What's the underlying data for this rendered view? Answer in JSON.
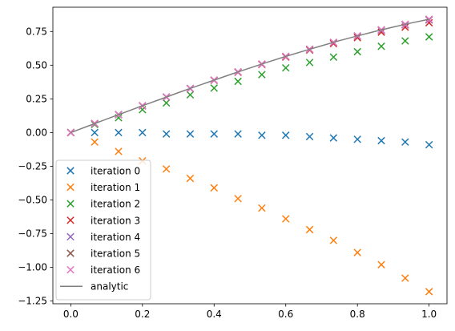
{
  "chart_data": {
    "type": "scatter",
    "title": "",
    "xlabel": "",
    "ylabel": "",
    "xlim": [
      -0.05,
      1.05
    ],
    "ylim": [
      -1.27,
      0.93
    ],
    "x_ticks": [
      0.0,
      0.2,
      0.4,
      0.6,
      0.8,
      1.0
    ],
    "x_tick_labels": [
      "0.0",
      "0.2",
      "0.4",
      "0.6",
      "0.8",
      "1.0"
    ],
    "y_ticks": [
      0.75,
      0.5,
      0.25,
      0.0,
      -0.25,
      -0.5,
      -0.75,
      -1.0,
      -1.25
    ],
    "y_tick_labels": [
      "0.75",
      "0.50",
      "0.25",
      "0.00",
      "−0.25",
      "−0.50",
      "−0.75",
      "−1.00",
      "−1.25"
    ],
    "grid": false,
    "legend_position": "lower-left",
    "x": [
      0.0,
      0.0667,
      0.1333,
      0.2,
      0.2667,
      0.3333,
      0.4,
      0.4667,
      0.5333,
      0.6,
      0.6667,
      0.7333,
      0.8,
      0.8667,
      0.9333,
      1.0
    ],
    "series": [
      {
        "name": "iteration 0",
        "marker": "x",
        "color": "#1f77b4",
        "values": [
          0.0,
          0.0,
          0.0,
          0.0,
          -0.01,
          -0.01,
          -0.01,
          -0.01,
          -0.02,
          -0.02,
          -0.03,
          -0.04,
          -0.05,
          -0.06,
          -0.07,
          -0.09
        ]
      },
      {
        "name": "iteration 1",
        "marker": "x",
        "color": "#ff7f0e",
        "values": [
          0.0,
          -0.07,
          -0.14,
          -0.21,
          -0.27,
          -0.34,
          -0.41,
          -0.49,
          -0.56,
          -0.64,
          -0.72,
          -0.8,
          -0.89,
          -0.98,
          -1.08,
          -1.18
        ]
      },
      {
        "name": "iteration 2",
        "marker": "x",
        "color": "#2ca02c",
        "values": [
          0.0,
          0.06,
          0.11,
          0.17,
          0.22,
          0.28,
          0.33,
          0.38,
          0.43,
          0.48,
          0.52,
          0.56,
          0.6,
          0.64,
          0.68,
          0.71
        ]
      },
      {
        "name": "iteration 3",
        "marker": "x",
        "color": "#d62728",
        "values": [
          0.0,
          0.067,
          0.133,
          0.198,
          0.263,
          0.326,
          0.387,
          0.447,
          0.505,
          0.56,
          0.612,
          0.66,
          0.704,
          0.745,
          0.782,
          0.815
        ]
      },
      {
        "name": "iteration 4",
        "marker": "x",
        "color": "#9467bd",
        "values": [
          0.0,
          0.067,
          0.133,
          0.199,
          0.264,
          0.327,
          0.389,
          0.449,
          0.508,
          0.564,
          0.617,
          0.668,
          0.714,
          0.758,
          0.798,
          0.835
        ]
      },
      {
        "name": "iteration 5",
        "marker": "x",
        "color": "#8c564b",
        "values": [
          0.0,
          0.067,
          0.133,
          0.199,
          0.264,
          0.327,
          0.389,
          0.45,
          0.508,
          0.565,
          0.618,
          0.669,
          0.717,
          0.762,
          0.803,
          0.84
        ]
      },
      {
        "name": "iteration 6",
        "marker": "x",
        "color": "#e377c2",
        "values": [
          0.0,
          0.067,
          0.133,
          0.199,
          0.264,
          0.327,
          0.389,
          0.45,
          0.508,
          0.565,
          0.618,
          0.669,
          0.717,
          0.762,
          0.803,
          0.841
        ]
      }
    ],
    "analytic": {
      "name": "analytic",
      "color": "#808080",
      "x": [
        0.0,
        0.05,
        0.1,
        0.15,
        0.2,
        0.25,
        0.3,
        0.35,
        0.4,
        0.45,
        0.5,
        0.55,
        0.6,
        0.65,
        0.7,
        0.75,
        0.8,
        0.85,
        0.9,
        0.95,
        1.0
      ],
      "y": [
        0.0,
        0.05,
        0.1,
        0.149,
        0.199,
        0.247,
        0.296,
        0.343,
        0.389,
        0.435,
        0.479,
        0.523,
        0.565,
        0.605,
        0.644,
        0.682,
        0.717,
        0.751,
        0.783,
        0.813,
        0.841
      ]
    }
  }
}
